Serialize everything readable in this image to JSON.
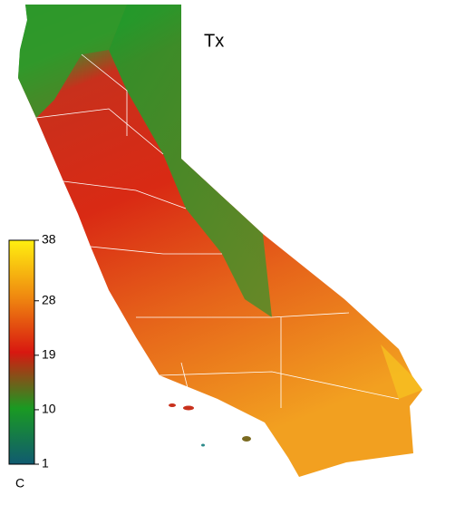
{
  "map": {
    "title": "Tx",
    "colorbar": {
      "ticks": [
        38,
        28,
        19,
        10,
        1
      ],
      "lim": [
        1,
        38
      ],
      "unit": "C"
    }
  }
}
